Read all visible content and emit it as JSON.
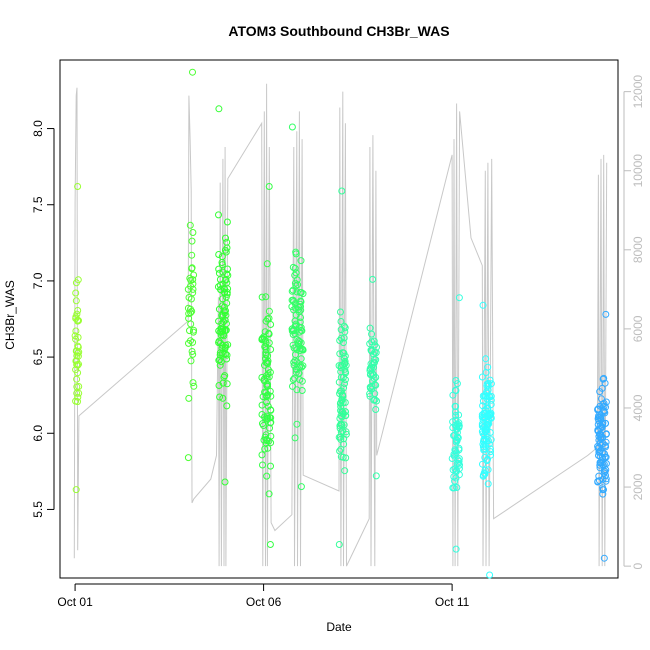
{
  "chart_data": {
    "type": "scatter",
    "title": "ATOM3 Southbound CH3Br_WAS",
    "xlabel": "Date",
    "ylabel": "CH3Br_WAS",
    "x_unit": "day of October",
    "xlim": [
      0.6,
      15.4
    ],
    "ylim": [
      5.05,
      8.45
    ],
    "y2lim": [
      -300,
      12800
    ],
    "x_ticks": [
      1,
      6,
      11
    ],
    "x_tick_labels": [
      "Oct 01",
      "Oct 06",
      "Oct 11"
    ],
    "y_ticks": [
      5.5,
      6.0,
      6.5,
      7.0,
      7.5,
      8.0
    ],
    "y_tick_labels": [
      "5.5",
      "6.0",
      "6.5",
      "7.0",
      "7.5",
      "8.0"
    ],
    "y2_ticks": [
      0,
      2000,
      4000,
      6000,
      8000,
      10000,
      12000
    ],
    "y2_tick_labels": [
      "0",
      "2000",
      "4000",
      "6000",
      "8000",
      "10000",
      "12000"
    ],
    "grid": false,
    "point_colors": {
      "light_green": "#99ff33",
      "green": "#33ff33",
      "teal_green": "#33ff99",
      "cyan": "#33ffff",
      "blue": "#3399ff",
      "altitude_line": "#c8c8c8"
    },
    "flights": [
      {
        "x_start": 1.0,
        "x_end": 1.1,
        "color": "#99ff33",
        "y_min": 5.63,
        "y_max": 7.62,
        "y_mean": 6.55,
        "count": 40
      },
      {
        "x_start": 4.0,
        "x_end": 4.15,
        "color": "#4dff33",
        "y_min": 5.84,
        "y_max": 8.37,
        "y_mean": 6.8,
        "count": 38
      },
      {
        "x_start": 4.8,
        "x_end": 5.05,
        "color": "#33ff33",
        "y_min": 5.68,
        "y_max": 8.13,
        "y_mean": 6.8,
        "count": 95
      },
      {
        "x_start": 5.95,
        "x_end": 6.2,
        "color": "#33ff44",
        "y_min": 5.27,
        "y_max": 7.62,
        "y_mean": 6.35,
        "count": 90
      },
      {
        "x_start": 6.75,
        "x_end": 7.05,
        "color": "#33ff66",
        "y_min": 5.65,
        "y_max": 8.01,
        "y_mean": 6.65,
        "count": 95
      },
      {
        "x_start": 8.0,
        "x_end": 8.2,
        "color": "#33ff99",
        "y_min": 5.27,
        "y_max": 7.59,
        "y_mean": 6.25,
        "count": 80
      },
      {
        "x_start": 8.8,
        "x_end": 9.0,
        "color": "#33ffaa",
        "y_min": 5.72,
        "y_max": 7.01,
        "y_mean": 6.4,
        "count": 45
      },
      {
        "x_start": 11.0,
        "x_end": 11.2,
        "color": "#33ffdd",
        "y_min": 5.24,
        "y_max": 6.89,
        "y_mean": 5.9,
        "count": 60
      },
      {
        "x_start": 11.8,
        "x_end": 12.05,
        "color": "#33ffff",
        "y_min": 5.07,
        "y_max": 6.84,
        "y_mean": 6.05,
        "count": 95
      },
      {
        "x_start": 14.85,
        "x_end": 15.1,
        "color": "#33aaff",
        "y_min": 5.18,
        "y_max": 6.78,
        "y_mean": 5.95,
        "count": 95
      }
    ],
    "altitude_track": [
      [
        0.98,
        200
      ],
      [
        1.0,
        9200
      ],
      [
        1.03,
        11900
      ],
      [
        1.05,
        12100
      ],
      [
        1.07,
        400
      ],
      [
        1.1,
        3800
      ],
      [
        4.0,
        6200
      ],
      [
        4.02,
        11900
      ],
      [
        4.05,
        10800
      ],
      [
        4.08,
        9500
      ],
      [
        4.1,
        1600
      ],
      [
        4.15,
        1700
      ],
      [
        4.6,
        2200
      ],
      [
        4.75,
        2800
      ],
      [
        4.8,
        6800
      ],
      [
        4.82,
        0
      ],
      [
        4.85,
        9700
      ],
      [
        4.88,
        0
      ],
      [
        4.92,
        10300
      ],
      [
        4.95,
        0
      ],
      [
        4.98,
        10600
      ],
      [
        5.0,
        0
      ],
      [
        5.05,
        9800
      ],
      [
        5.95,
        11200
      ],
      [
        5.98,
        0
      ],
      [
        6.02,
        11500
      ],
      [
        6.05,
        0
      ],
      [
        6.08,
        12200
      ],
      [
        6.1,
        0
      ],
      [
        6.15,
        10600
      ],
      [
        6.2,
        1100
      ],
      [
        6.3,
        900
      ],
      [
        6.75,
        1300
      ],
      [
        6.8,
        10600
      ],
      [
        6.82,
        0
      ],
      [
        6.88,
        11000
      ],
      [
        6.9,
        0
      ],
      [
        6.95,
        11500
      ],
      [
        6.98,
        0
      ],
      [
        7.02,
        10800
      ],
      [
        7.05,
        2300
      ],
      [
        8.0,
        1900
      ],
      [
        8.02,
        11600
      ],
      [
        8.05,
        0
      ],
      [
        8.1,
        12000
      ],
      [
        8.12,
        0
      ],
      [
        8.17,
        11200
      ],
      [
        8.2,
        0
      ],
      [
        8.8,
        1200
      ],
      [
        8.82,
        10600
      ],
      [
        8.85,
        0
      ],
      [
        8.9,
        10900
      ],
      [
        8.95,
        0
      ],
      [
        8.98,
        10000
      ],
      [
        9.0,
        2800
      ],
      [
        11.0,
        10400
      ],
      [
        11.02,
        0
      ],
      [
        11.05,
        10800
      ],
      [
        11.08,
        0
      ],
      [
        11.12,
        11700
      ],
      [
        11.15,
        0
      ],
      [
        11.2,
        11500
      ],
      [
        11.5,
        8300
      ],
      [
        11.8,
        7600
      ],
      [
        11.82,
        0
      ],
      [
        11.88,
        10000
      ],
      [
        11.9,
        0
      ],
      [
        11.95,
        10200
      ],
      [
        11.98,
        0
      ],
      [
        12.05,
        10300
      ],
      [
        12.1,
        1200
      ],
      [
        14.6,
        2800
      ],
      [
        14.85,
        3000
      ],
      [
        14.88,
        9900
      ],
      [
        14.9,
        0
      ],
      [
        14.95,
        10300
      ],
      [
        14.98,
        0
      ],
      [
        15.02,
        10400
      ],
      [
        15.05,
        0
      ],
      [
        15.1,
        10200
      ]
    ]
  }
}
